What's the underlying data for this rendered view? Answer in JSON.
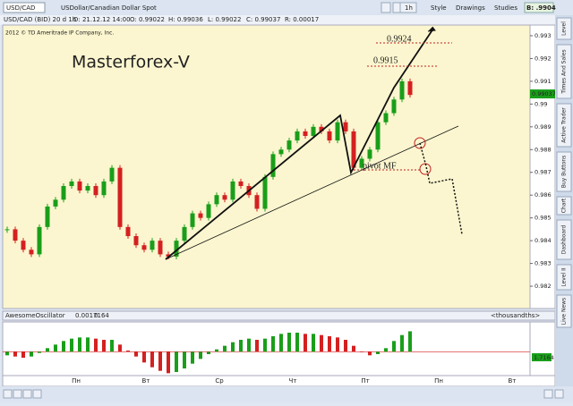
{
  "toolbar": {
    "symbol": "USD/CAD",
    "description": "USDollar/Canadian Dollar Spot",
    "interval": "1h",
    "style": "Style",
    "drawings": "Drawings",
    "studies": "Studies",
    "bid": "B: .9904"
  },
  "info": {
    "instrument": "USD/CAD (BID) 20 d 1h",
    "date": "D: 21.12.12 14:00",
    "open": "O: 0.99022",
    "high": "H: 0.99036",
    "low": "L: 0.99022",
    "close": "C: 0.99037",
    "range": "R: 0.00017"
  },
  "copyright": "2012 © TD Ameritrade IP Company, Inc.",
  "side_tabs": [
    "Level",
    "Times And Sales",
    "Active Trader",
    "Buy Buttons",
    "Chart",
    "Dashboard",
    "Level II",
    "Live News"
  ],
  "chart_data": {
    "type": "candlestick",
    "title": "Masterforex-V",
    "annotations": [
      "0.9924",
      "0.9915",
      "pivot MF"
    ],
    "last_price": "0.99037",
    "closes": [
      0.9845,
      0.984,
      0.9836,
      0.9834,
      0.9846,
      0.9855,
      0.9858,
      0.9864,
      0.9866,
      0.9862,
      0.9864,
      0.986,
      0.9866,
      0.9872,
      0.9846,
      0.9842,
      0.9838,
      0.9836,
      0.984,
      0.9834,
      0.9833,
      0.984,
      0.9846,
      0.9852,
      0.985,
      0.9856,
      0.986,
      0.9858,
      0.9866,
      0.9864,
      0.986,
      0.9854,
      0.9868,
      0.9878,
      0.988,
      0.9884,
      0.9888,
      0.9886,
      0.989,
      0.9888,
      0.9884,
      0.9892,
      0.9888,
      0.9872,
      0.9876,
      0.988,
      0.9892,
      0.9896,
      0.9902,
      0.991,
      0.9904
    ],
    "up_color": "#1a9e1a",
    "down_color": "#d42020",
    "ylim": [
      0.98102,
      0.99347
    ],
    "yticks": [
      0.993,
      0.992,
      0.991,
      0.99,
      0.989,
      0.988,
      0.987,
      0.986,
      0.985,
      0.984,
      0.983,
      0.982
    ],
    "x_labels": [
      "Пн",
      "Вт",
      "Ср",
      "Чт",
      "Пт",
      "Пн",
      "Вт"
    ]
  },
  "oscillator": {
    "name": "AwesomeOscillator",
    "value": "0.0017164",
    "zero": "0",
    "units": "<thousandths>",
    "value_label": "1.7164",
    "values": [
      -0.3,
      -0.4,
      -0.5,
      -0.4,
      -0.1,
      0.3,
      0.6,
      0.9,
      1.1,
      1.2,
      1.2,
      1.1,
      1.0,
      1.0,
      0.6,
      0.1,
      -0.4,
      -0.9,
      -1.3,
      -1.6,
      -1.8,
      -1.7,
      -1.4,
      -1.0,
      -0.6,
      -0.2,
      0.2,
      0.5,
      0.8,
      1.0,
      1.1,
      1.0,
      1.1,
      1.3,
      1.5,
      1.6,
      1.6,
      1.5,
      1.5,
      1.4,
      1.3,
      1.2,
      1.0,
      0.5,
      0.0,
      -0.3,
      -0.2,
      0.3,
      0.9,
      1.4,
      1.7164
    ],
    "ylim": [
      -2,
      2.5
    ]
  }
}
